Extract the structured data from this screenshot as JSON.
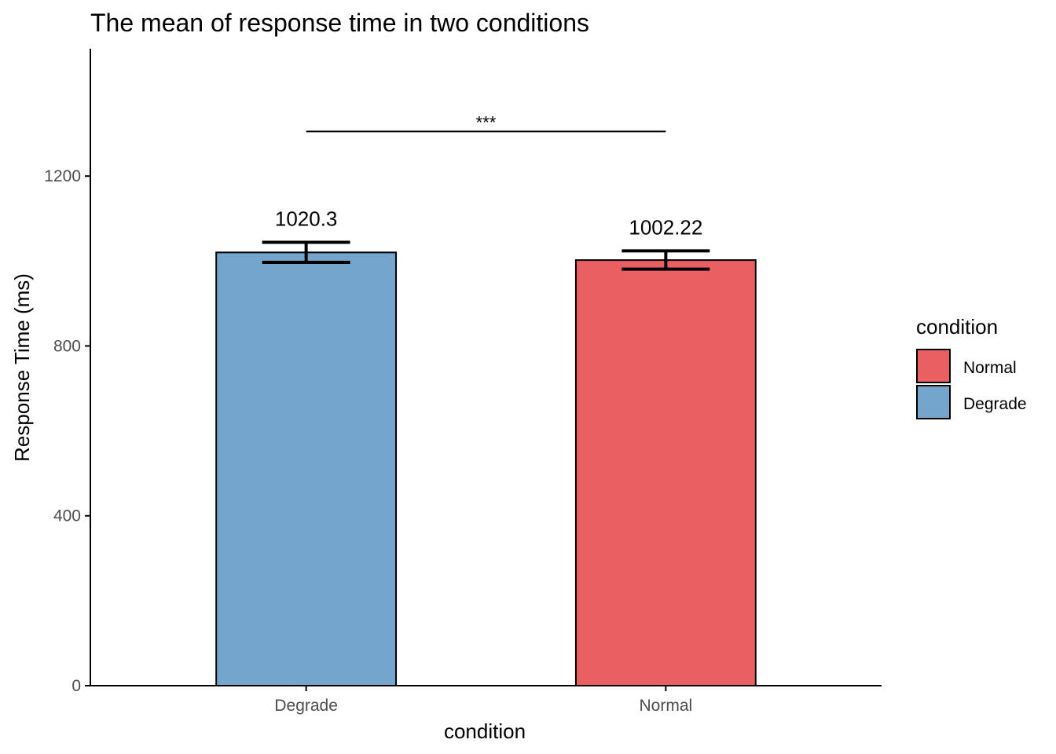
{
  "chart_data": {
    "type": "bar",
    "title": "The mean of response time in two conditions",
    "xlabel": "condition",
    "ylabel": "Response Time (ms)",
    "ylim": [
      0,
      1500
    ],
    "yticks": [
      0,
      400,
      800,
      1200
    ],
    "categories": [
      "Degrade",
      "Normal"
    ],
    "values": [
      1020.3,
      1002.22
    ],
    "value_labels": [
      "1020.3",
      "1002.22"
    ],
    "error_low": [
      997,
      981
    ],
    "error_high": [
      1044,
      1024
    ],
    "colors": [
      "#74a5cc",
      "#ea5f62"
    ],
    "significance": {
      "from": "Degrade",
      "to": "Normal",
      "y": 1305,
      "label": "***"
    },
    "grid": false,
    "legend": {
      "title": "condition",
      "position": "right",
      "items": [
        {
          "label": "Normal",
          "color": "#ea5f62"
        },
        {
          "label": "Degrade",
          "color": "#74a5cc"
        }
      ]
    }
  }
}
